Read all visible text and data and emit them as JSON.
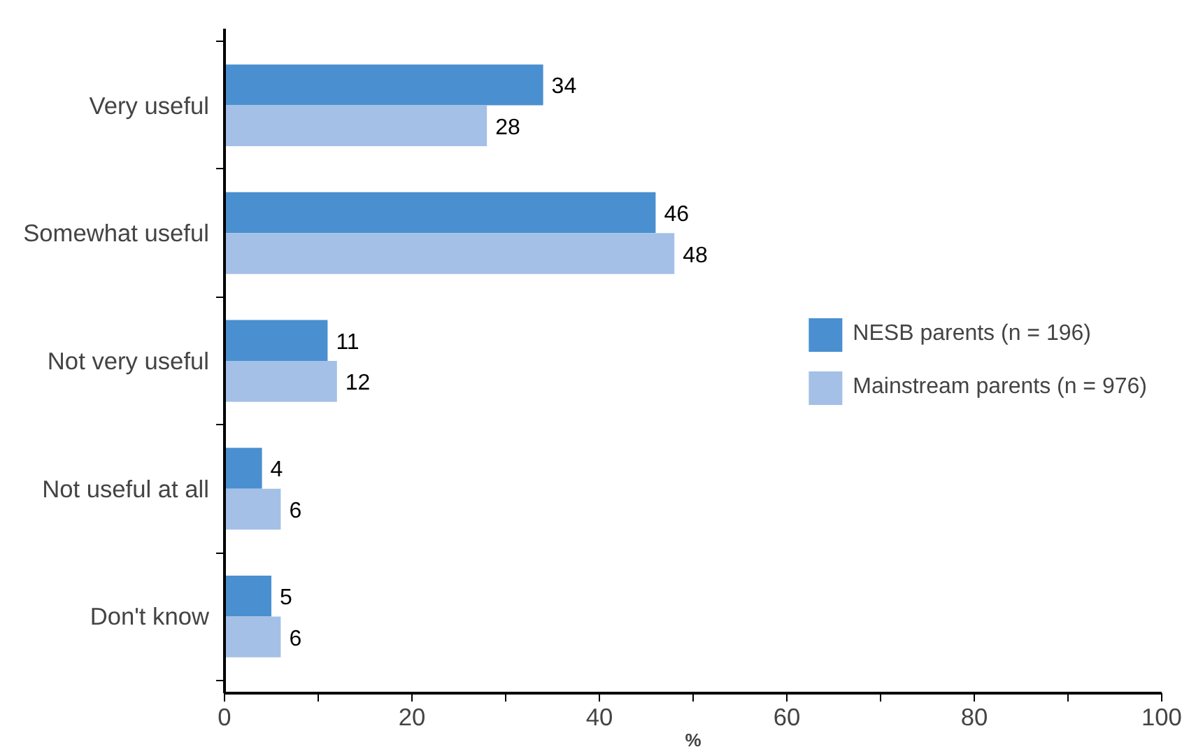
{
  "chart_data": {
    "type": "bar",
    "orientation": "horizontal",
    "xlabel": "%",
    "categories": [
      "Very useful",
      "Somewhat useful",
      "Not very useful",
      "Not useful at all",
      "Don't know"
    ],
    "series": [
      {
        "name": "NESB parents (n = 196)",
        "color": "#4a8fd0",
        "values": [
          34,
          46,
          11,
          4,
          5
        ]
      },
      {
        "name": "Mainstream parents (n = 976)",
        "color": "#a5c0e6",
        "values": [
          28,
          48,
          12,
          6,
          6
        ]
      }
    ],
    "xlim": [
      0,
      100
    ],
    "xticks": [
      0,
      {
        "value": 10,
        "label": null
      },
      20,
      {
        "value": 30,
        "label": null
      },
      40,
      {
        "value": 50,
        "label": null
      },
      60,
      {
        "value": 70,
        "label": null
      },
      80,
      {
        "value": 90,
        "label": null
      },
      100
    ],
    "data_labels": true,
    "legend": "right",
    "grid": false
  }
}
